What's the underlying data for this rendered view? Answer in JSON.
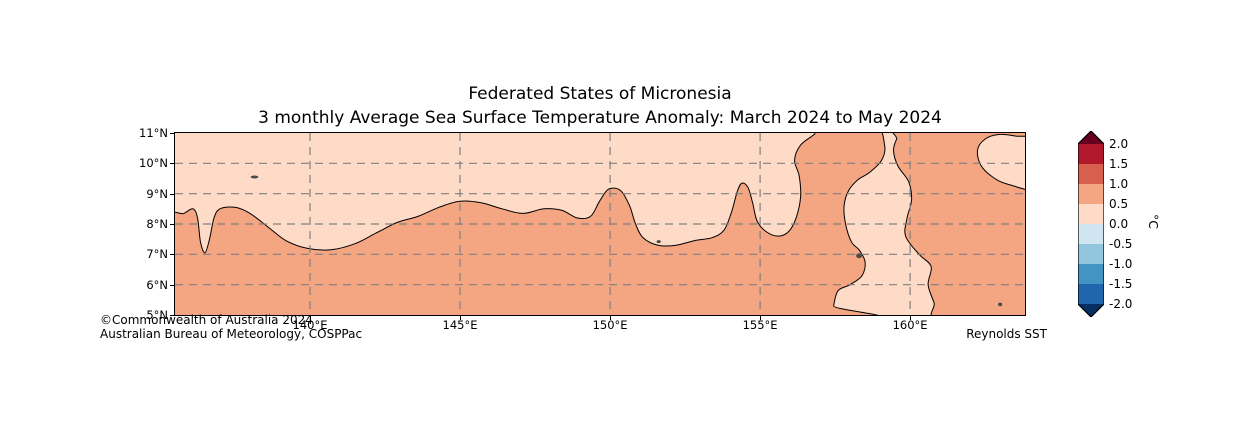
{
  "figure": {
    "title_line1": "Federated States of Micronesia",
    "title_line2": "3 monthly Average Sea Surface Temperature Anomaly: March 2024 to May 2024",
    "attribution_line1": "©Commonwealth of Australia 2024",
    "attribution_line2": "Australian Bureau of Meteorology, COSPPac",
    "source_label": "Reynolds SST"
  },
  "chart_data": {
    "type": "heatmap",
    "subtype": "filled-contour-sst-anomaly-map",
    "title": "Federated States of Micronesia — 3 monthly Average Sea Surface Temperature Anomaly: March 2024 to May 2024",
    "xlabel": "",
    "ylabel": "",
    "units": "°C",
    "lon_range": [
      135.5,
      163.83
    ],
    "lat_range": [
      5,
      11
    ],
    "x_ticks": [
      {
        "lon": 140,
        "label": "140°E"
      },
      {
        "lon": 145,
        "label": "145°E"
      },
      {
        "lon": 150,
        "label": "150°E"
      },
      {
        "lon": 155,
        "label": "155°E"
      },
      {
        "lon": 160,
        "label": "160°E"
      }
    ],
    "y_ticks": [
      {
        "lat": 11,
        "label": "11°N"
      },
      {
        "lat": 10,
        "label": "10°N"
      },
      {
        "lat": 9,
        "label": "9°N"
      },
      {
        "lat": 8,
        "label": "8°N"
      },
      {
        "lat": 7,
        "label": "7°N"
      },
      {
        "lat": 6,
        "label": "6°N"
      },
      {
        "lat": 5,
        "label": "5°N"
      }
    ],
    "grid": {
      "style": "dashed",
      "lon_lines": [
        140,
        145,
        150,
        155,
        160
      ],
      "lat_lines": [
        6,
        7,
        8,
        9,
        10
      ]
    },
    "colors": {
      "figure_background": "#ffffff",
      "background_fill": "#fddbc7",
      "anomaly_fill": "#f4a582",
      "contour_line": "#000000",
      "grid_line": "#7f7f7f",
      "island": "#4a4a4a",
      "axis_frame": "#000000"
    },
    "value_bands_visible": [
      {
        "range_c": "0.0 to 0.5",
        "color": "#fddbc7",
        "coverage": "northern band, bay near 151-154E, bottom-right pocket, right-edge pocket"
      },
      {
        "range_c": "0.5 to 1.0",
        "color": "#f4a582",
        "coverage": "most of the southern and eastern region"
      }
    ],
    "colorbar": {
      "label": "°C",
      "range": [
        -2.0,
        2.0
      ],
      "value_step": 0.5,
      "tick_labels": [
        "2.0",
        "1.5",
        "1.0",
        "0.5",
        "0.0",
        "-0.5",
        "-1.0",
        "-1.5",
        "-2.0"
      ],
      "segment_colors_top_to_bottom": [
        "#b2182b",
        "#d6604d",
        "#f4a582",
        "#fddbc7",
        "#d1e5f0",
        "#92c5de",
        "#4393c3",
        "#2166ac"
      ],
      "over_arrow_color": "#67001f",
      "under_arrow_color": "#053061"
    },
    "regions": {
      "warm_polygons_lonlat": [
        [
          [
            135.2,
            8.05
          ],
          [
            135.8,
            8.35
          ],
          [
            136.1,
            8.5
          ],
          [
            136.25,
            8.2
          ],
          [
            136.35,
            7.4
          ],
          [
            136.5,
            7.05
          ],
          [
            136.65,
            7.5
          ],
          [
            136.8,
            8.2
          ],
          [
            137.0,
            8.5
          ],
          [
            137.5,
            8.55
          ],
          [
            138.0,
            8.35
          ],
          [
            138.6,
            7.9
          ],
          [
            139.2,
            7.45
          ],
          [
            139.9,
            7.2
          ],
          [
            140.7,
            7.15
          ],
          [
            141.5,
            7.35
          ],
          [
            142.2,
            7.7
          ],
          [
            142.9,
            8.05
          ],
          [
            143.6,
            8.25
          ],
          [
            144.3,
            8.55
          ],
          [
            145.0,
            8.75
          ],
          [
            145.7,
            8.7
          ],
          [
            146.4,
            8.5
          ],
          [
            147.1,
            8.35
          ],
          [
            147.8,
            8.5
          ],
          [
            148.4,
            8.45
          ],
          [
            148.9,
            8.2
          ],
          [
            149.35,
            8.25
          ],
          [
            149.65,
            8.75
          ],
          [
            149.95,
            9.15
          ],
          [
            150.35,
            9.1
          ],
          [
            150.65,
            8.6
          ],
          [
            150.85,
            8.0
          ],
          [
            151.1,
            7.55
          ],
          [
            151.6,
            7.3
          ],
          [
            152.2,
            7.3
          ],
          [
            152.8,
            7.45
          ],
          [
            153.4,
            7.55
          ],
          [
            153.8,
            7.8
          ],
          [
            154.05,
            8.4
          ],
          [
            154.25,
            9.1
          ],
          [
            154.4,
            9.35
          ],
          [
            154.6,
            9.2
          ],
          [
            154.75,
            8.7
          ],
          [
            154.9,
            8.1
          ],
          [
            155.2,
            7.75
          ],
          [
            155.6,
            7.6
          ],
          [
            155.95,
            7.75
          ],
          [
            156.2,
            8.2
          ],
          [
            156.35,
            8.9
          ],
          [
            156.3,
            9.6
          ],
          [
            156.15,
            10.1
          ],
          [
            156.35,
            10.6
          ],
          [
            156.8,
            10.95
          ],
          [
            157.1,
            11.25
          ],
          [
            158.8,
            11.25
          ],
          [
            159.15,
            10.6
          ],
          [
            159.05,
            10.1
          ],
          [
            158.65,
            9.7
          ],
          [
            158.25,
            9.45
          ],
          [
            157.95,
            9.1
          ],
          [
            157.8,
            8.6
          ],
          [
            157.85,
            8.0
          ],
          [
            158.05,
            7.4
          ],
          [
            158.3,
            7.15
          ],
          [
            158.5,
            6.75
          ],
          [
            158.4,
            6.3
          ],
          [
            158.0,
            6.0
          ],
          [
            157.6,
            5.8
          ],
          [
            157.45,
            5.3
          ],
          [
            157.4,
            4.8
          ],
          [
            135.2,
            4.8
          ]
        ],
        [
          [
            161.0,
            4.8
          ],
          [
            160.8,
            5.4
          ],
          [
            160.6,
            6.0
          ],
          [
            160.7,
            6.6
          ],
          [
            160.3,
            7.0
          ],
          [
            159.85,
            7.6
          ],
          [
            159.9,
            8.2
          ],
          [
            160.05,
            8.8
          ],
          [
            159.95,
            9.4
          ],
          [
            159.6,
            9.9
          ],
          [
            159.45,
            10.4
          ],
          [
            159.55,
            10.8
          ],
          [
            159.8,
            11.25
          ],
          [
            164.3,
            11.25
          ],
          [
            164.3,
            4.8
          ]
        ]
      ],
      "light_pockets_lonlat": [
        [
          [
            164.3,
            9.2
          ],
          [
            163.3,
            9.3
          ],
          [
            162.75,
            9.55
          ],
          [
            162.35,
            9.95
          ],
          [
            162.25,
            10.45
          ],
          [
            162.5,
            10.8
          ],
          [
            162.95,
            10.95
          ],
          [
            163.5,
            10.9
          ],
          [
            164.3,
            10.7
          ]
        ]
      ]
    },
    "islands": [
      {
        "lon": 138.15,
        "lat": 9.55,
        "rx": 0.13,
        "ry": 0.05
      },
      {
        "lon": 151.62,
        "lat": 7.42,
        "rx": 0.07,
        "ry": 0.05
      },
      {
        "lon": 158.3,
        "lat": 6.95,
        "rx": 0.1,
        "ry": 0.08
      },
      {
        "lon": 163.0,
        "lat": 5.35,
        "rx": 0.07,
        "ry": 0.06
      }
    ]
  }
}
